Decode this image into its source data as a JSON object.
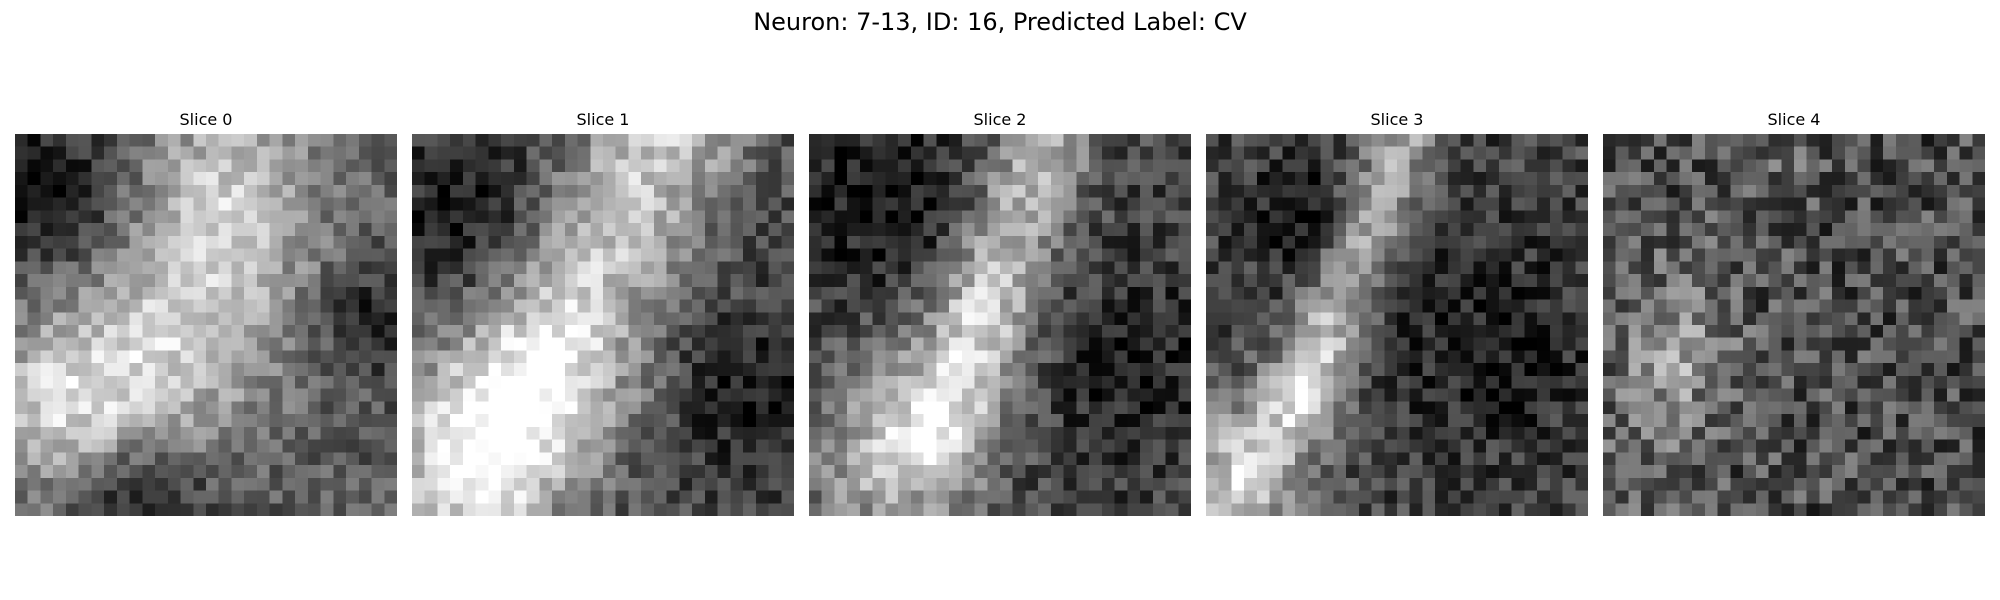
{
  "figure": {
    "title": "Neuron: 7-13, ID: 16, Predicted Label: CV"
  },
  "panels": [
    {
      "title": "Slice 0",
      "colormap": "grayscale"
    },
    {
      "title": "Slice 1",
      "colormap": "grayscale"
    },
    {
      "title": "Slice 2",
      "colormap": "grayscale"
    },
    {
      "title": "Slice 3",
      "colormap": "grayscale"
    },
    {
      "title": "Slice 4",
      "colormap": "grayscale"
    }
  ]
}
